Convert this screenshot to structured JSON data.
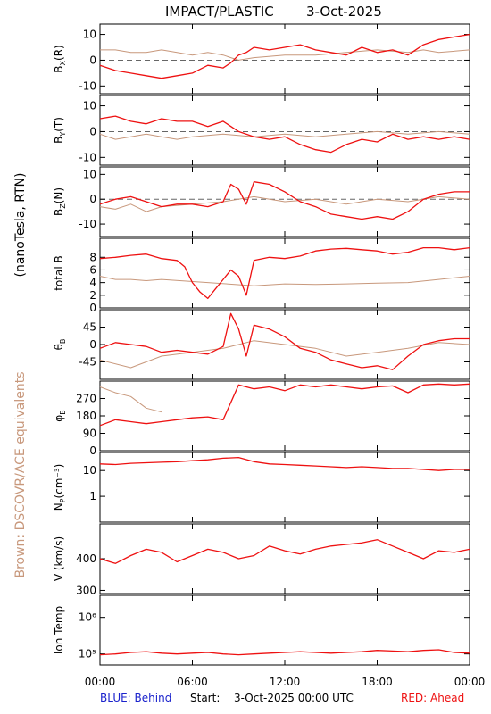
{
  "header": {
    "title": "IMPACT/PLASTIC",
    "date": "3-Oct-2025"
  },
  "side_labels": {
    "units": "(nanoTesla, RTN)",
    "brown_note": "Brown: DSCOVR/ACE equivalents"
  },
  "footer": {
    "blue_label": "BLUE: Behind",
    "start_label": "Start:",
    "start_value": "3-Oct-2025 00:00 UTC",
    "red_label": "RED: Ahead"
  },
  "colors": {
    "ahead": "#ee1111",
    "brown": "#c8987c",
    "blue": "#1a22cc",
    "axis": "#000000"
  },
  "chart_data": {
    "type": "line",
    "x_tick_labels": [
      "00:00",
      "06:00",
      "12:00",
      "18:00",
      "00:00"
    ],
    "x_ticks_hours": [
      0,
      6,
      12,
      18,
      24
    ],
    "xlim_hours": [
      0,
      24
    ],
    "panels": [
      {
        "id": "bx",
        "ylabel": "B",
        "ysub": "X",
        "ysuffix": "(R)",
        "scale": "linear",
        "ylim": [
          -13,
          14
        ],
        "ticks": [
          -10,
          0,
          10
        ],
        "tick_labels": [
          "-10",
          "0",
          "10"
        ],
        "zero_line": true,
        "series": [
          {
            "color": "ahead",
            "x": [
              0,
              1,
              2,
              3,
              4,
              5,
              6,
              7,
              8,
              8.5,
              9,
              9.5,
              10,
              11,
              12,
              13,
              14,
              15,
              16,
              17,
              18,
              19,
              20,
              21,
              22,
              23,
              24
            ],
            "y": [
              -2,
              -4,
              -5,
              -6,
              -7,
              -6,
              -5,
              -2,
              -3,
              -1,
              2,
              3,
              5,
              4,
              5,
              6,
              4,
              3,
              2,
              5,
              3,
              4,
              2,
              6,
              8,
              9,
              10
            ]
          },
          {
            "color": "brown",
            "x": [
              0,
              1,
              2,
              3,
              4,
              5,
              6,
              7,
              8,
              8.5,
              9,
              10,
              12,
              14,
              16,
              18,
              20,
              21,
              22,
              24
            ],
            "y": [
              4,
              4,
              3,
              3,
              4,
              3,
              2,
              3,
              2,
              1,
              0,
              1,
              2,
              2,
              3,
              4,
              3,
              4,
              3,
              4
            ]
          }
        ]
      },
      {
        "id": "by",
        "ylabel": "B",
        "ysub": "Y",
        "ysuffix": "(T)",
        "scale": "linear",
        "ylim": [
          -13,
          14
        ],
        "ticks": [
          -10,
          0,
          10
        ],
        "tick_labels": [
          "-10",
          "0",
          "10"
        ],
        "zero_line": true,
        "series": [
          {
            "color": "ahead",
            "x": [
              0,
              1,
              2,
              3,
              4,
              5,
              6,
              7,
              8,
              9,
              10,
              11,
              12,
              13,
              14,
              15,
              16,
              17,
              18,
              19,
              20,
              21,
              22,
              23,
              24
            ],
            "y": [
              5,
              6,
              4,
              3,
              5,
              4,
              4,
              2,
              4,
              0,
              -2,
              -3,
              -2,
              -5,
              -7,
              -8,
              -5,
              -3,
              -4,
              -1,
              -3,
              -2,
              -3,
              -2,
              -3
            ]
          },
          {
            "color": "brown",
            "x": [
              0,
              1,
              2,
              3,
              4,
              5,
              6,
              8,
              10,
              12,
              14,
              16,
              18,
              20,
              22,
              24
            ],
            "y": [
              -1,
              -3,
              -2,
              -1,
              -2,
              -3,
              -2,
              -1,
              -2,
              -1,
              -2,
              -1,
              0,
              -1,
              0,
              -1
            ]
          }
        ]
      },
      {
        "id": "bz",
        "ylabel": "B",
        "ysub": "Z",
        "ysuffix": "(N)",
        "scale": "linear",
        "ylim": [
          -15,
          13
        ],
        "ticks": [
          -10,
          0,
          10
        ],
        "tick_labels": [
          "-10",
          "0",
          "10"
        ],
        "zero_line": true,
        "series": [
          {
            "color": "ahead",
            "x": [
              0,
              1,
              2,
              3,
              4,
              5,
              6,
              7,
              8,
              8.5,
              9,
              9.5,
              10,
              11,
              12,
              13,
              14,
              15,
              16,
              17,
              18,
              19,
              20,
              21,
              22,
              23,
              24
            ],
            "y": [
              -2,
              0,
              1,
              -1,
              -3,
              -2,
              -2,
              -3,
              -1,
              6,
              4,
              -2,
              7,
              6,
              3,
              -1,
              -3,
              -6,
              -7,
              -8,
              -7,
              -8,
              -5,
              0,
              2,
              3,
              3
            ]
          },
          {
            "color": "brown",
            "x": [
              0,
              1,
              2,
              3,
              4,
              6,
              8,
              10,
              12,
              14,
              16,
              18,
              20,
              22,
              24
            ],
            "y": [
              -3,
              -4,
              -2,
              -5,
              -3,
              -2,
              -1,
              1,
              -1,
              0,
              -2,
              0,
              -1,
              1,
              0
            ]
          }
        ]
      },
      {
        "id": "btotal",
        "ylabel": "total B",
        "scale": "linear",
        "ylim": [
          0,
          11
        ],
        "ticks": [
          0,
          2,
          4,
          6,
          8
        ],
        "tick_labels": [
          "0",
          "2",
          "4",
          "6",
          "8"
        ],
        "zero_line": false,
        "series": [
          {
            "color": "ahead",
            "x": [
              0,
              1,
              2,
              3,
              4,
              5,
              5.5,
              6,
              6.5,
              7,
              7.5,
              8,
              8.5,
              9,
              9.5,
              10,
              11,
              12,
              13,
              14,
              15,
              16,
              17,
              18,
              19,
              20,
              21,
              22,
              23,
              24
            ],
            "y": [
              7.8,
              8,
              8.3,
              8.5,
              7.8,
              7.5,
              6.5,
              4,
              2.5,
              1.5,
              3,
              4.5,
              6,
              5,
              2,
              7.5,
              8,
              7.8,
              8.2,
              9,
              9.3,
              9.4,
              9.2,
              9,
              8.5,
              8.8,
              9.5,
              9.5,
              9.2,
              9.5
            ]
          },
          {
            "color": "brown",
            "x": [
              0,
              1,
              2,
              3,
              4,
              10,
              12,
              14,
              16,
              18,
              20,
              22,
              24
            ],
            "y": [
              5,
              4.5,
              4.5,
              4.3,
              4.5,
              3.5,
              3.8,
              3.7,
              3.8,
              3.9,
              4,
              4.5,
              5
            ]
          }
        ]
      },
      {
        "id": "theta",
        "ylabel": "θ",
        "ysub": "B",
        "scale": "linear",
        "ylim": [
          -90,
          90
        ],
        "ticks": [
          -45,
          0,
          45
        ],
        "tick_labels": [
          "-45",
          "0",
          "45"
        ],
        "zero_line": false,
        "series": [
          {
            "color": "ahead",
            "x": [
              0,
              1,
              2,
              3,
              4,
              5,
              6,
              7,
              8,
              8.5,
              9,
              9.5,
              10,
              11,
              12,
              13,
              14,
              15,
              16,
              17,
              18,
              19,
              20,
              21,
              22,
              23,
              24
            ],
            "y": [
              -10,
              5,
              0,
              -5,
              -20,
              -15,
              -20,
              -25,
              -5,
              80,
              40,
              -30,
              50,
              40,
              20,
              -10,
              -20,
              -40,
              -50,
              -60,
              -55,
              -65,
              -30,
              0,
              10,
              15,
              15
            ]
          },
          {
            "color": "brown",
            "x": [
              0,
              2,
              4,
              6,
              8,
              10,
              12,
              14,
              16,
              18,
              20,
              22,
              24
            ],
            "y": [
              -40,
              -60,
              -30,
              -20,
              -10,
              10,
              0,
              -10,
              -30,
              -20,
              -10,
              5,
              0
            ]
          }
        ]
      },
      {
        "id": "phi",
        "ylabel": "φ",
        "ysub": "B",
        "scale": "linear",
        "ylim": [
          0,
          360
        ],
        "ticks": [
          0,
          90,
          180,
          270
        ],
        "tick_labels": [
          "0",
          "90",
          "180",
          "270"
        ],
        "zero_line": false,
        "series": [
          {
            "color": "ahead",
            "x": [
              0,
              1,
              2,
              3,
              4,
              5,
              6,
              7,
              8,
              9,
              10,
              11,
              12,
              13,
              14,
              15,
              16,
              17,
              18,
              19,
              20,
              21,
              22,
              23,
              24
            ],
            "y": [
              130,
              160,
              150,
              140,
              150,
              160,
              170,
              175,
              160,
              340,
              320,
              330,
              310,
              340,
              330,
              340,
              330,
              320,
              330,
              335,
              300,
              340,
              345,
              340,
              345
            ]
          },
          {
            "color": "brown",
            "x": [
              0,
              1,
              2,
              3,
              4
            ],
            "y": [
              330,
              300,
              280,
              220,
              200
            ]
          }
        ]
      },
      {
        "id": "np",
        "ylabel": "N",
        "ysub": "P",
        "ysuffix": "(cm⁻³)",
        "scale": "log",
        "ylim": [
          0.1,
          50
        ],
        "ticks": [
          1,
          10
        ],
        "tick_labels": [
          "1",
          "10"
        ],
        "zero_line": false,
        "series": [
          {
            "color": "ahead",
            "x": [
              0,
              1,
              2,
              3,
              4,
              5,
              6,
              7,
              8,
              9,
              10,
              11,
              12,
              13,
              14,
              15,
              16,
              17,
              18,
              19,
              20,
              21,
              22,
              23,
              24
            ],
            "y": [
              18,
              17,
              19,
              20,
              21,
              22,
              24,
              26,
              30,
              32,
              22,
              18,
              17,
              16,
              15,
              14,
              13,
              14,
              13,
              12,
              12,
              11,
              10,
              11,
              11
            ]
          }
        ]
      },
      {
        "id": "v",
        "ylabel": "V (km/s)",
        "scale": "linear",
        "ylim": [
          290,
          510
        ],
        "ticks": [
          300,
          400
        ],
        "tick_labels": [
          "300",
          "400"
        ],
        "zero_line": false,
        "series": [
          {
            "color": "ahead",
            "x": [
              0,
              1,
              2,
              3,
              4,
              5,
              6,
              7,
              8,
              9,
              10,
              11,
              12,
              13,
              14,
              15,
              16,
              17,
              18,
              19,
              20,
              21,
              22,
              23,
              24
            ],
            "y": [
              400,
              385,
              410,
              430,
              420,
              390,
              410,
              430,
              420,
              400,
              410,
              440,
              425,
              415,
              430,
              440,
              445,
              450,
              460,
              440,
              420,
              400,
              425,
              420,
              430
            ]
          }
        ]
      },
      {
        "id": "temp",
        "ylabel": "Ion Temp",
        "scale": "log",
        "ylim": [
          50000,
          4000000
        ],
        "ticks": [
          100000,
          1000000
        ],
        "tick_labels": [
          "10⁵",
          "10⁶"
        ],
        "zero_line": false,
        "series": [
          {
            "color": "ahead",
            "x": [
              0,
              1,
              2,
              3,
              4,
              5,
              6,
              7,
              8,
              9,
              10,
              11,
              12,
              13,
              14,
              15,
              16,
              17,
              18,
              19,
              20,
              21,
              22,
              23,
              24
            ],
            "y": [
              95000,
              100000,
              110000,
              115000,
              105000,
              100000,
              105000,
              110000,
              100000,
              95000,
              100000,
              105000,
              110000,
              115000,
              110000,
              105000,
              110000,
              115000,
              125000,
              120000,
              115000,
              125000,
              130000,
              110000,
              105000
            ]
          }
        ]
      }
    ]
  }
}
